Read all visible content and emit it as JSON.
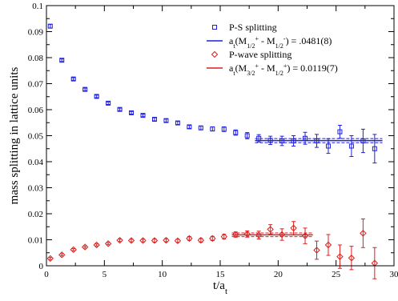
{
  "chart_data": {
    "type": "scatter",
    "xlabel": "t/a",
    "xlabel_sub": "t",
    "ylabel": "mass splitting in lattice units",
    "xlim": [
      0,
      30
    ],
    "ylim": [
      0,
      0.1
    ],
    "xticks": [
      0,
      5,
      10,
      15,
      20,
      25,
      30
    ],
    "xtick_labels": [
      "0",
      "5",
      "10",
      "15",
      "20",
      "25",
      "30"
    ],
    "yticks": [
      0,
      0.01,
      0.02,
      0.03,
      0.04,
      0.05,
      0.06,
      0.07,
      0.08,
      0.09,
      0.1
    ],
    "ytick_labels": [
      "0",
      "0.01",
      "0.02",
      "0.03",
      "0.04",
      "0.05",
      "0.06",
      "0.07",
      "0.08",
      "0.09",
      "0.1"
    ],
    "grid": false,
    "legend_position": "top-right",
    "legend": [
      {
        "kind": "marker",
        "series": "ps",
        "text": "P-S splitting"
      },
      {
        "kind": "fit",
        "series": "ps",
        "main": "a",
        "sub1": "t",
        "pre": "(M",
        "sub2": "1/2",
        "sup2": "+",
        "mid": " - M",
        "sub3": "1/2",
        "sup3": "-",
        "post": ") = .0481(8)"
      },
      {
        "kind": "marker",
        "series": "pw",
        "text": "P-wave splitting"
      },
      {
        "kind": "fit",
        "series": "pw",
        "main": "a",
        "sub1": "t",
        "pre": "(M",
        "sub2": "3/2",
        "sup2": "+",
        "mid": " - M",
        "sub3": "1/2",
        "sup3": "+",
        "post": ") = 0.0119(7)"
      }
    ],
    "series": [
      {
        "id": "ps",
        "marker": "square",
        "color": "#1f1fdd",
        "x": [
          0.33,
          1.33,
          2.33,
          3.33,
          4.33,
          5.33,
          6.33,
          7.33,
          8.33,
          9.33,
          10.33,
          11.33,
          12.33,
          13.33,
          14.33,
          15.33,
          16.33,
          17.33,
          18.33,
          19.33,
          20.33,
          21.33,
          22.33,
          23.33,
          24.33,
          25.33,
          26.33,
          27.33,
          28.33
        ],
        "y": [
          0.0921,
          0.079,
          0.0718,
          0.0678,
          0.0651,
          0.0625,
          0.0601,
          0.0588,
          0.0578,
          0.0563,
          0.0558,
          0.0549,
          0.0534,
          0.053,
          0.0526,
          0.0525,
          0.0512,
          0.05,
          0.049,
          0.0482,
          0.048,
          0.048,
          0.049,
          0.048,
          0.046,
          0.0515,
          0.046,
          0.048,
          0.045
        ],
        "err": [
          0.0007,
          0.0005,
          0.0005,
          0.0005,
          0.0005,
          0.0005,
          0.0005,
          0.0005,
          0.0005,
          0.0006,
          0.0006,
          0.0006,
          0.0006,
          0.0007,
          0.0008,
          0.0009,
          0.001,
          0.0012,
          0.0014,
          0.0016,
          0.0018,
          0.002,
          0.0023,
          0.0025,
          0.0028,
          0.0025,
          0.004,
          0.0045,
          0.0055
        ],
        "fit": {
          "value": 0.0481,
          "error": 0.0008,
          "x_range": [
            18,
            29
          ]
        }
      },
      {
        "id": "pw",
        "marker": "diamond",
        "color": "#dd1f1f",
        "x": [
          0.33,
          1.33,
          2.33,
          3.33,
          4.33,
          5.33,
          6.33,
          7.33,
          8.33,
          9.33,
          10.33,
          11.33,
          12.33,
          13.33,
          14.33,
          15.33,
          16.33,
          17.33,
          18.33,
          19.33,
          20.33,
          21.33,
          22.33,
          23.33,
          24.33,
          25.33,
          26.33,
          27.33,
          28.33
        ],
        "y": [
          0.0028,
          0.0042,
          0.0062,
          0.0072,
          0.008,
          0.0085,
          0.0098,
          0.0097,
          0.0097,
          0.0097,
          0.0098,
          0.0096,
          0.0105,
          0.0098,
          0.0105,
          0.0112,
          0.012,
          0.0122,
          0.0118,
          0.014,
          0.012,
          0.0145,
          0.0115,
          0.006,
          0.008,
          0.0035,
          0.003,
          0.0125,
          0.001
        ],
        "err": [
          0.0004,
          0.0004,
          0.0004,
          0.0004,
          0.0004,
          0.0004,
          0.0005,
          0.0005,
          0.0005,
          0.0006,
          0.0006,
          0.0006,
          0.0007,
          0.0007,
          0.0008,
          0.0009,
          0.001,
          0.0012,
          0.0015,
          0.0018,
          0.0022,
          0.0025,
          0.003,
          0.0035,
          0.004,
          0.0045,
          0.0045,
          0.0055,
          0.006
        ],
        "fit": {
          "value": 0.0119,
          "error": 0.0007,
          "x_range": [
            16,
            23
          ]
        }
      }
    ]
  }
}
